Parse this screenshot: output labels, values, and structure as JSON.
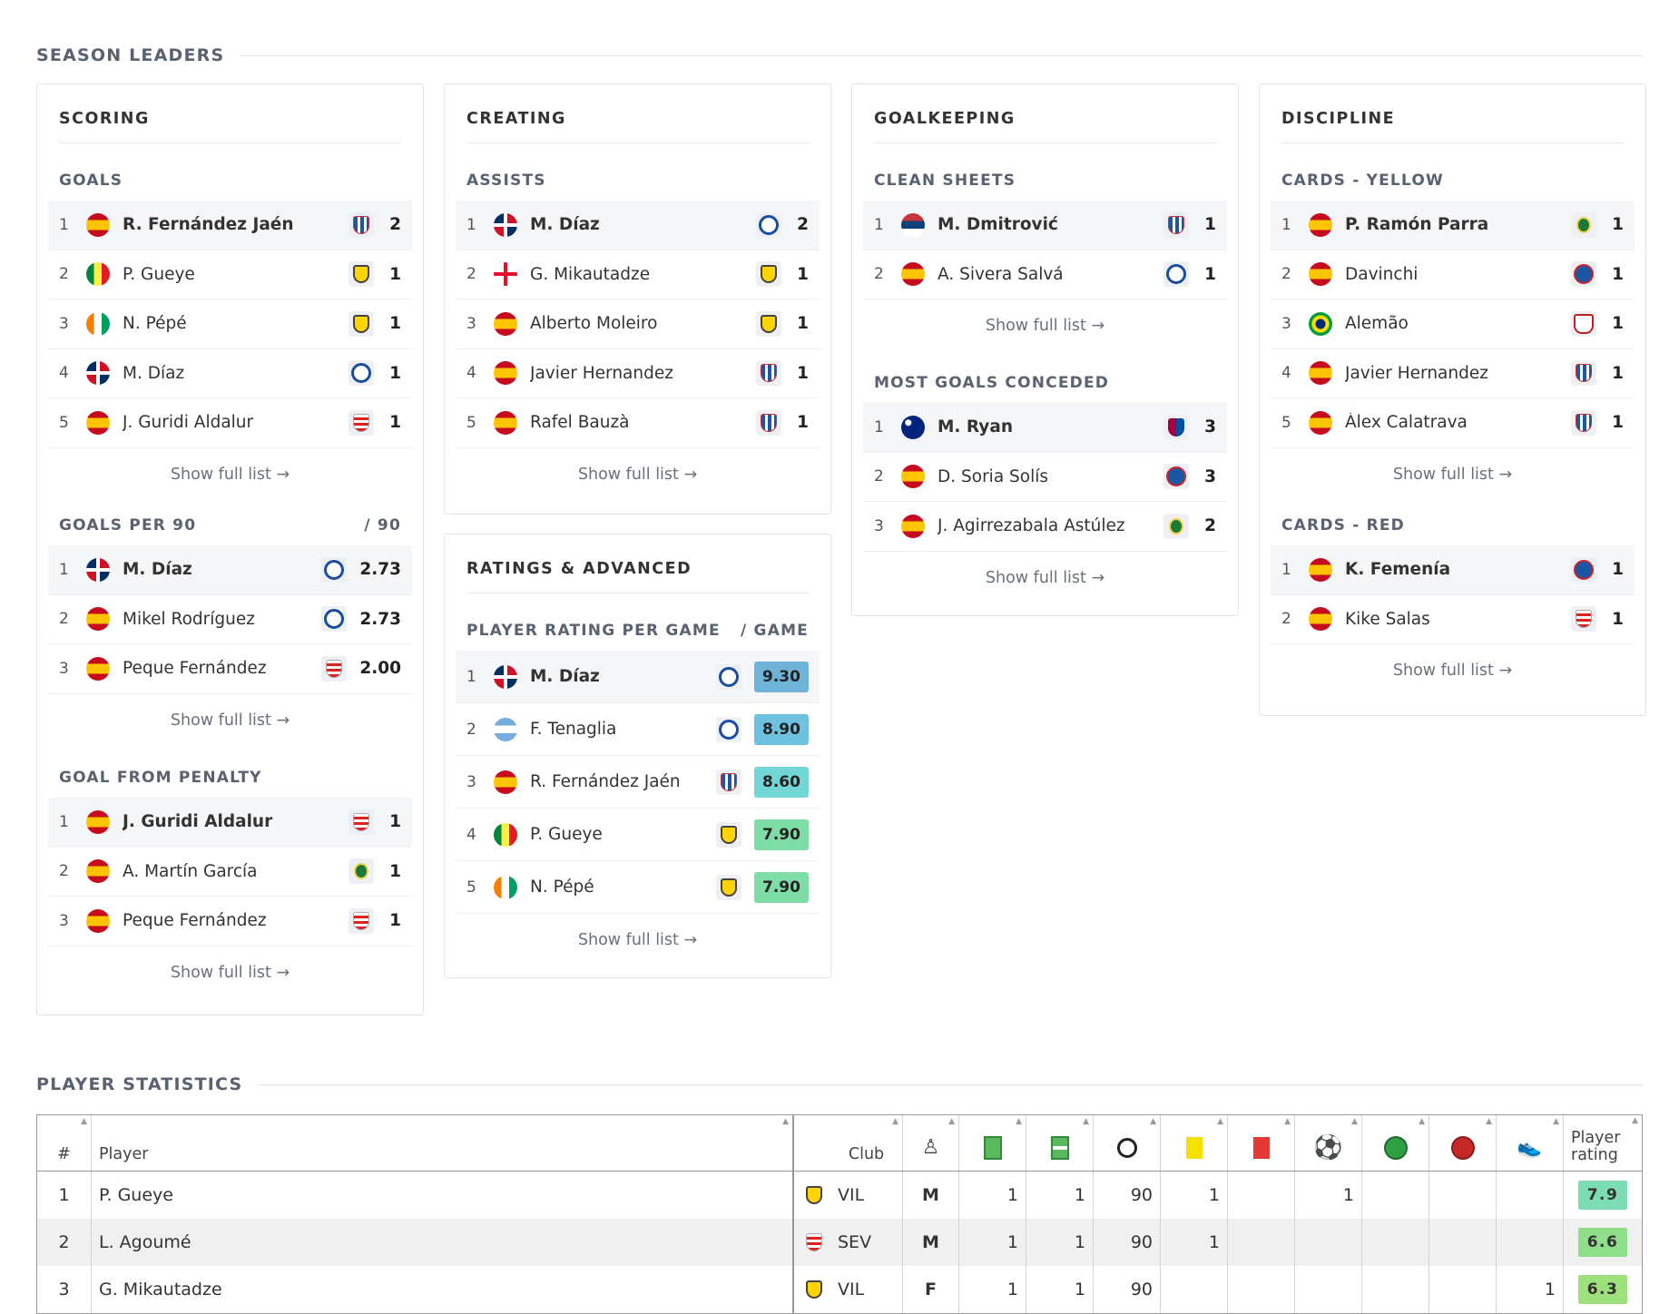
{
  "season_leaders": {
    "title": "SEASON LEADERS",
    "scoring": {
      "title": "SCORING",
      "goals": {
        "label": "GOALS",
        "rows": [
          {
            "rank": "1",
            "name": "R. Fernández Jaén",
            "value": "2"
          },
          {
            "rank": "2",
            "name": "P. Gueye",
            "value": "1"
          },
          {
            "rank": "3",
            "name": "N. Pépé",
            "value": "1"
          },
          {
            "rank": "4",
            "name": "M. Díaz",
            "value": "1"
          },
          {
            "rank": "5",
            "name": "J. Guridi Aldalur",
            "value": "1"
          }
        ]
      },
      "goals_per_90": {
        "label": "GOALS PER 90",
        "unit": "/ 90",
        "rows": [
          {
            "rank": "1",
            "name": "M. Díaz",
            "value": "2.73"
          },
          {
            "rank": "2",
            "name": "Mikel Rodríguez",
            "value": "2.73"
          },
          {
            "rank": "3",
            "name": "Peque Fernández",
            "value": "2.00"
          }
        ]
      },
      "penalty": {
        "label": "GOAL FROM PENALTY",
        "rows": [
          {
            "rank": "1",
            "name": "J. Guridi Aldalur",
            "value": "1"
          },
          {
            "rank": "2",
            "name": "A. Martín García",
            "value": "1"
          },
          {
            "rank": "3",
            "name": "Peque Fernández",
            "value": "1"
          }
        ]
      }
    },
    "creating": {
      "title": "CREATING",
      "assists": {
        "label": "ASSISTS",
        "rows": [
          {
            "rank": "1",
            "name": "M. Díaz",
            "value": "2"
          },
          {
            "rank": "2",
            "name": "G. Mikautadze",
            "value": "1"
          },
          {
            "rank": "3",
            "name": "Alberto Moleiro",
            "value": "1"
          },
          {
            "rank": "4",
            "name": "Javier Hernandez",
            "value": "1"
          },
          {
            "rank": "5",
            "name": "Rafel Bauzà",
            "value": "1"
          }
        ]
      }
    },
    "ratings": {
      "title": "RATINGS & ADVANCED",
      "per_game": {
        "label": "PLAYER RATING PER GAME",
        "unit": "/ GAME",
        "rows": [
          {
            "rank": "1",
            "name": "M. Díaz",
            "value": "9.30",
            "color": "#6fb3d9"
          },
          {
            "rank": "2",
            "name": "F. Tenaglia",
            "value": "8.90",
            "color": "#6fc2df"
          },
          {
            "rank": "3",
            "name": "R. Fernández Jaén",
            "value": "8.60",
            "color": "#72d6d6"
          },
          {
            "rank": "4",
            "name": "P. Gueye",
            "value": "7.90",
            "color": "#7edca6"
          },
          {
            "rank": "5",
            "name": "N. Pépé",
            "value": "7.90",
            "color": "#7edca6"
          }
        ]
      }
    },
    "goalkeeping": {
      "title": "GOALKEEPING",
      "clean": {
        "label": "CLEAN SHEETS",
        "rows": [
          {
            "rank": "1",
            "name": "M. Dmitrović",
            "value": "1"
          },
          {
            "rank": "2",
            "name": "A. Sivera Salvá",
            "value": "1"
          }
        ]
      },
      "conceded": {
        "label": "MOST GOALS CONCEDED",
        "rows": [
          {
            "rank": "1",
            "name": "M. Ryan",
            "value": "3"
          },
          {
            "rank": "2",
            "name": "D. Soria Solís",
            "value": "3"
          },
          {
            "rank": "3",
            "name": "J. Agirrezabala Astúlez",
            "value": "2"
          }
        ]
      }
    },
    "discipline": {
      "title": "DISCIPLINE",
      "yellow": {
        "label": "CARDS - YELLOW",
        "rows": [
          {
            "rank": "1",
            "name": "P. Ramón Parra",
            "value": "1"
          },
          {
            "rank": "2",
            "name": "Davinchi",
            "value": "1"
          },
          {
            "rank": "3",
            "name": "Alemão",
            "value": "1"
          },
          {
            "rank": "4",
            "name": "Javier Hernandez",
            "value": "1"
          },
          {
            "rank": "5",
            "name": "Álex Calatrava",
            "value": "1"
          }
        ]
      },
      "red": {
        "label": "CARDS - RED",
        "rows": [
          {
            "rank": "1",
            "name": "K. Femenía",
            "value": "1"
          },
          {
            "rank": "2",
            "name": "Kike Salas",
            "value": "1"
          }
        ]
      }
    },
    "show_full": "Show full list →"
  },
  "player_stats": {
    "title": "PLAYER STATISTICS",
    "headers": {
      "num": "#",
      "player": "Player",
      "club": "Club",
      "rating": "Player rating"
    },
    "rows": [
      {
        "num": "1",
        "player": "P. Gueye",
        "club": "VIL",
        "pos": "M",
        "c1": "1",
        "c2": "1",
        "min": "90",
        "yel": "1",
        "red": "",
        "goals": "1",
        "ast": "",
        "og": "",
        "pen": "",
        "rating": "7.9",
        "rcolor": "#7edcb4"
      },
      {
        "num": "2",
        "player": "L. Agoumé",
        "club": "SEV",
        "pos": "M",
        "c1": "1",
        "c2": "1",
        "min": "90",
        "yel": "1",
        "red": "",
        "goals": "",
        "ast": "",
        "og": "",
        "pen": "",
        "rating": "6.6",
        "rcolor": "#8ede8a"
      },
      {
        "num": "3",
        "player": "G. Mikautadze",
        "club": "VIL",
        "pos": "F",
        "c1": "1",
        "c2": "1",
        "min": "90",
        "yel": "",
        "red": "",
        "goals": "",
        "ast": "",
        "og": "",
        "pen": "1",
        "rating": "6.3",
        "rcolor": "#9ee07c"
      }
    ]
  }
}
